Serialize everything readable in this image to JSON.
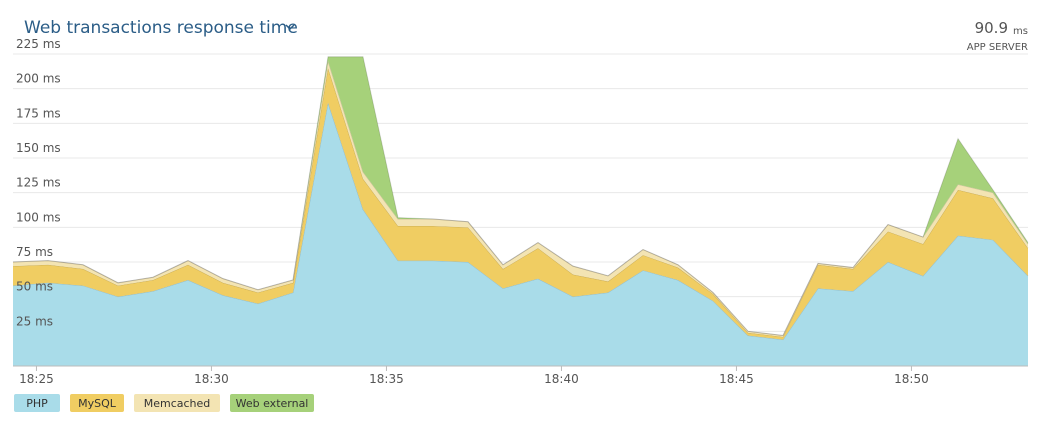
{
  "chart_data": {
    "type": "stacked-area",
    "title": "Web transactions response time",
    "summary_value": "90.9",
    "summary_unit": "ms",
    "summary_label": "APP SERVER",
    "x": [
      1104.33,
      1105.33,
      1106.33,
      1107.33,
      1108.33,
      1109.33,
      1110.33,
      1111.33,
      1112.33,
      1113.33,
      1114.33,
      1115.33,
      1116.33,
      1117.33,
      1118.33,
      1119.33,
      1120.33,
      1121.33,
      1122.33,
      1123.33,
      1124.33,
      1125.33,
      1126.33,
      1127.33,
      1128.33,
      1129.33,
      1130.33,
      1131.33,
      1132.33,
      1133.33
    ],
    "xlim": [
      1104.33,
      1133.33
    ],
    "xticks": [
      {
        "value": 1105,
        "label": "18:25"
      },
      {
        "value": 1110,
        "label": "18:30"
      },
      {
        "value": 1115,
        "label": "18:35"
      },
      {
        "value": 1120,
        "label": "18:40"
      },
      {
        "value": 1125,
        "label": "18:45"
      },
      {
        "value": 1130,
        "label": "18:50"
      }
    ],
    "ylim": [
      0,
      225
    ],
    "yticks": [
      {
        "value": 25,
        "label": "25 ms"
      },
      {
        "value": 50,
        "label": "50 ms"
      },
      {
        "value": 75,
        "label": "75 ms"
      },
      {
        "value": 100,
        "label": "100 ms"
      },
      {
        "value": 125,
        "label": "125 ms"
      },
      {
        "value": 150,
        "label": "150 ms"
      },
      {
        "value": 175,
        "label": "175 ms"
      },
      {
        "value": 200,
        "label": "200 ms"
      },
      {
        "value": 225,
        "label": "225 ms"
      }
    ],
    "grid": true,
    "series": [
      {
        "name": "PHP",
        "color": "#a9dce9",
        "values": [
          58,
          60,
          58,
          50,
          54,
          62,
          51,
          45,
          53,
          190,
          113,
          76,
          76,
          75,
          56,
          63,
          50,
          53,
          69,
          62,
          47,
          22,
          19,
          56,
          54,
          75,
          65,
          94,
          91,
          65
        ]
      },
      {
        "name": "MySQL",
        "color": "#f0cd62",
        "values": [
          14,
          13,
          12,
          8,
          8,
          11,
          9,
          8,
          7,
          25,
          22,
          25,
          25,
          25,
          14,
          22,
          16,
          8,
          11,
          9,
          5,
          2,
          2,
          17,
          16,
          22,
          23,
          33,
          30,
          20
        ]
      },
      {
        "name": "Memcached",
        "color": "#f3e4b3",
        "values": [
          3,
          3,
          3,
          2,
          2,
          3,
          3,
          2,
          2,
          5,
          5,
          5,
          5,
          4,
          3,
          4,
          6,
          4,
          4,
          2,
          1,
          1,
          1,
          1,
          1,
          5,
          5,
          4,
          4,
          3
        ]
      },
      {
        "name": "Web external",
        "color": "#a6d17a",
        "values": [
          0,
          0,
          0,
          0,
          0,
          0,
          0,
          0,
          0,
          3,
          83,
          1,
          0,
          0,
          0,
          0,
          0,
          0,
          0,
          0,
          0,
          0,
          0,
          0,
          0,
          0,
          0,
          33,
          2,
          1
        ]
      }
    ]
  }
}
